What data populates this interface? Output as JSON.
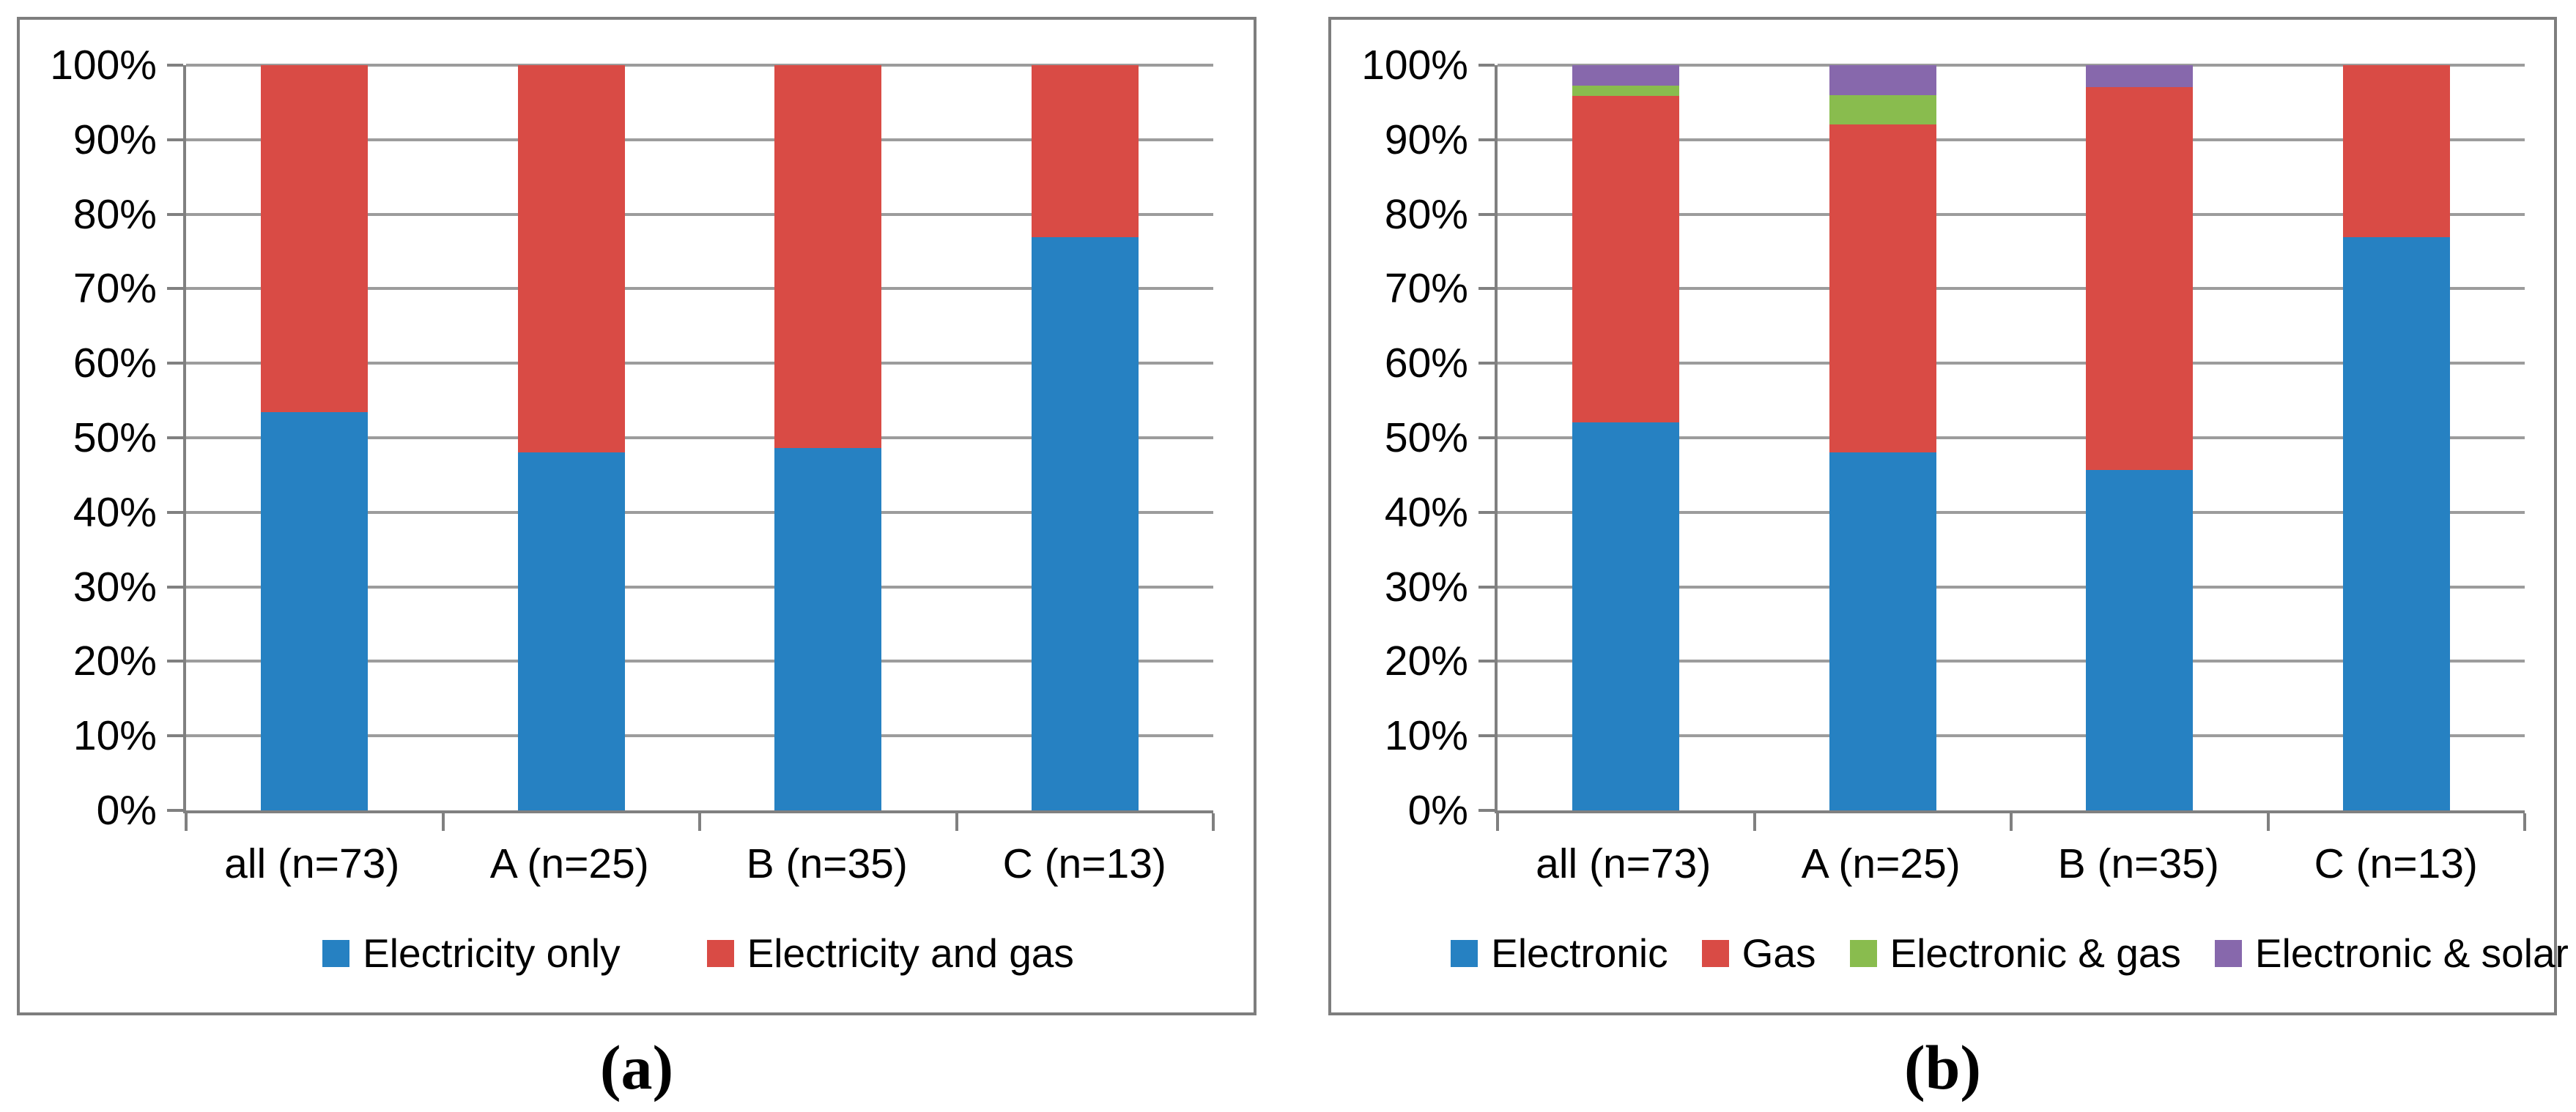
{
  "figure": {
    "description": "Two side-by-side 100% stacked column charts comparing energy types",
    "background": "#ffffff"
  },
  "colors": {
    "blue": "#2681c2",
    "red": "#d94b45",
    "green": "#89bc4e",
    "purple": "#8768ac",
    "gridline": "#9c9c9c",
    "axis": "#808080",
    "panel_border": "#7e7e7e",
    "text": "#000000"
  },
  "chart_data": [
    {
      "type": "bar",
      "stacked": true,
      "units": "percent",
      "caption": "(a)",
      "categories": [
        "all (n=73)",
        "A (n=25)",
        "B (n=35)",
        "C (n=13)"
      ],
      "series": [
        {
          "name": "Electricity only",
          "color": "#2681c2",
          "values": [
            53.4,
            48.0,
            48.6,
            76.9
          ]
        },
        {
          "name": "Electricity and gas",
          "color": "#d94b45",
          "values": [
            46.6,
            52.0,
            51.4,
            23.1
          ]
        }
      ],
      "ylim": [
        0,
        100
      ],
      "y_tick_labels": [
        "0%",
        "10%",
        "20%",
        "30%",
        "40%",
        "50%",
        "60%",
        "70%",
        "80%",
        "90%",
        "100%"
      ],
      "grid": "horizontal",
      "legend_position": "bottom"
    },
    {
      "type": "bar",
      "stacked": true,
      "units": "percent",
      "caption": "(b)",
      "categories": [
        "all (n=73)",
        "A (n=25)",
        "B (n=35)",
        "C (n=13)"
      ],
      "series": [
        {
          "name": "Electronic",
          "color": "#2681c2",
          "values": [
            52.1,
            48.0,
            45.7,
            76.9
          ]
        },
        {
          "name": "Gas",
          "color": "#d94b45",
          "values": [
            43.8,
            44.0,
            51.4,
            23.1
          ]
        },
        {
          "name": "Electronic & gas",
          "color": "#89bc4e",
          "values": [
            1.4,
            4.0,
            0.0,
            0.0
          ]
        },
        {
          "name": "Electronic & solar",
          "color": "#8768ac",
          "values": [
            2.7,
            4.0,
            2.9,
            0.0
          ]
        }
      ],
      "ylim": [
        0,
        100
      ],
      "y_tick_labels": [
        "0%",
        "10%",
        "20%",
        "30%",
        "40%",
        "50%",
        "60%",
        "70%",
        "80%",
        "90%",
        "100%"
      ],
      "grid": "horizontal",
      "legend_position": "bottom"
    }
  ]
}
